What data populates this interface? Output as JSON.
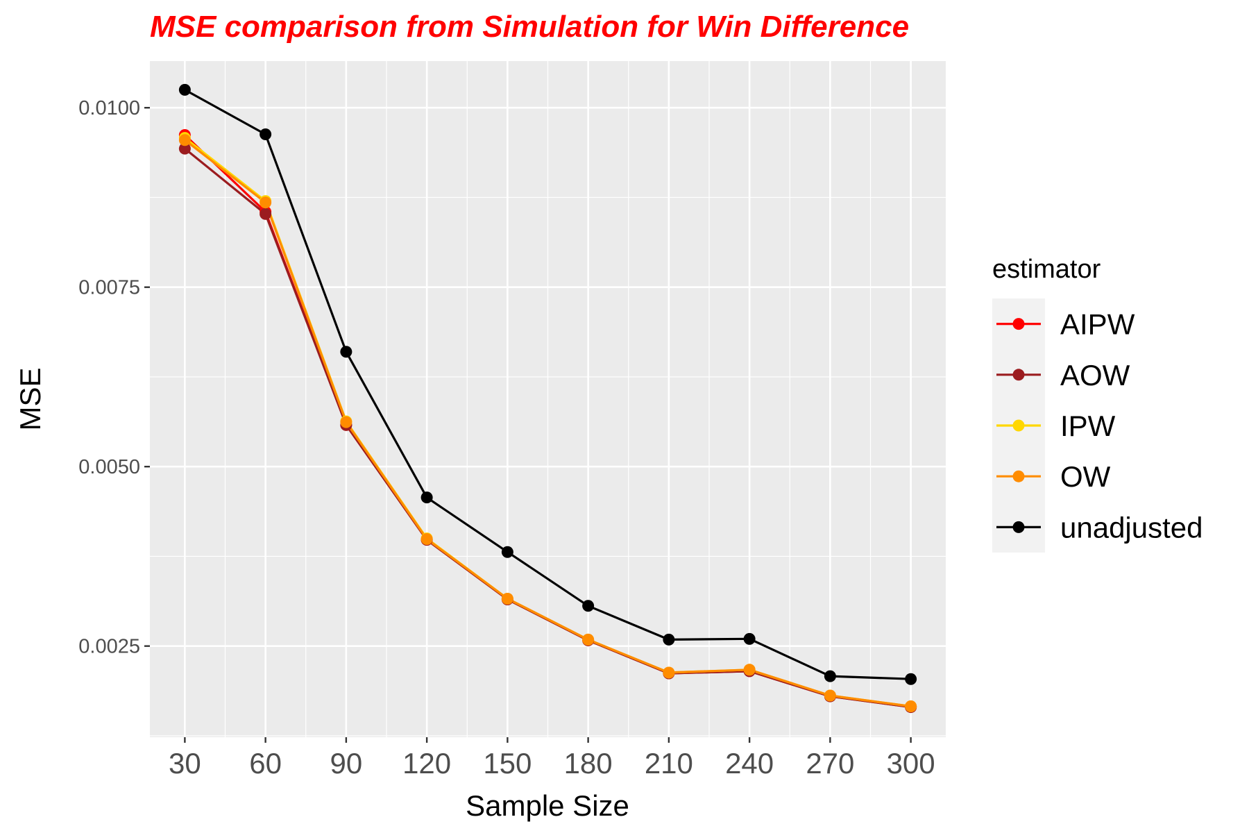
{
  "chart_data": {
    "type": "line",
    "title": "MSE comparison from Simulation for Win Difference",
    "title_color": "#ff0000",
    "xlabel": "Sample Size",
    "ylabel": "MSE",
    "x": [
      30,
      60,
      90,
      120,
      150,
      180,
      210,
      240,
      270,
      300
    ],
    "x_tick_labels": [
      "30",
      "60",
      "90",
      "120",
      "150",
      "180",
      "210",
      "240",
      "270",
      "300"
    ],
    "y_ticks": [
      0.0025,
      0.005,
      0.0075,
      0.01
    ],
    "y_tick_labels": [
      "0.0025",
      "0.0050",
      "0.0075",
      "0.0100"
    ],
    "xlim": [
      17,
      313
    ],
    "ylim": [
      0.00123,
      0.01065
    ],
    "legend_title": "estimator",
    "legend_position": "right",
    "grid": true,
    "panel_background": "#ebebeb",
    "series": [
      {
        "name": "AIPW",
        "color": "#ff0000",
        "values": [
          0.00962,
          0.00855,
          0.00558,
          0.00398,
          0.00315,
          0.00258,
          0.00212,
          0.00215,
          0.0018,
          0.00165
        ]
      },
      {
        "name": "AOW",
        "color": "#9b1c1f",
        "values": [
          0.00943,
          0.00852,
          0.00558,
          0.00398,
          0.00315,
          0.00258,
          0.00212,
          0.00215,
          0.0018,
          0.00165
        ]
      },
      {
        "name": "IPW",
        "color": "#ffd700",
        "values": [
          0.00958,
          0.0087,
          0.00563,
          0.004,
          0.00316,
          0.00259,
          0.00213,
          0.00217,
          0.00181,
          0.00166
        ]
      },
      {
        "name": "OW",
        "color": "#ff8c00",
        "values": [
          0.00955,
          0.00868,
          0.00562,
          0.00399,
          0.00316,
          0.00259,
          0.00213,
          0.00217,
          0.00181,
          0.00166
        ]
      },
      {
        "name": "unadjusted",
        "color": "#000000",
        "values": [
          0.01025,
          0.00963,
          0.0066,
          0.00457,
          0.00381,
          0.00306,
          0.00259,
          0.0026,
          0.00208,
          0.00204
        ]
      }
    ]
  }
}
